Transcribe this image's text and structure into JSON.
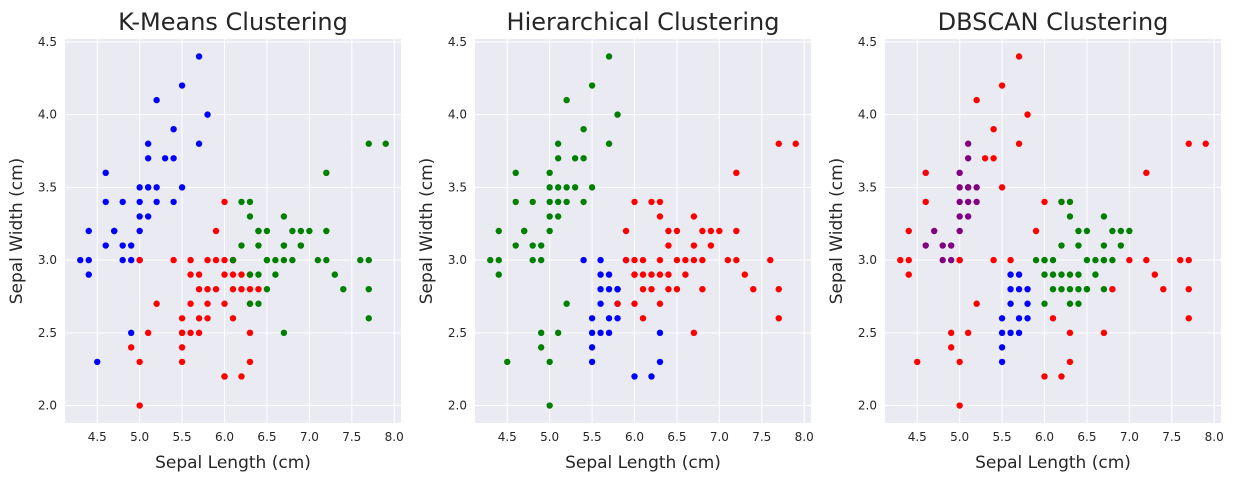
{
  "chart_data": [
    {
      "type": "scatter",
      "title": "K-Means Clustering",
      "xlabel": "Sepal Length (cm)",
      "ylabel": "Sepal Width (cm)",
      "xlim": [
        4.12,
        8.08
      ],
      "ylim": [
        1.88,
        4.52
      ],
      "xticks": [
        "4.5",
        "5.0",
        "5.5",
        "6.0",
        "6.5",
        "7.0",
        "7.5",
        "8.0"
      ],
      "yticks": [
        "2.0",
        "2.5",
        "3.0",
        "3.5",
        "4.0",
        "4.5"
      ],
      "grid": true,
      "series": [
        {
          "color": "#0000ff",
          "x": [
            4.3,
            4.4,
            4.4,
            4.4,
            4.5,
            4.6,
            4.6,
            4.6,
            4.7,
            4.7,
            4.8,
            4.8,
            4.8,
            4.9,
            4.9,
            5.0,
            5.0,
            5.0,
            5.0,
            5.0,
            5.1,
            5.1,
            5.1,
            5.1,
            5.1,
            5.2,
            5.2,
            5.2,
            5.3,
            5.4,
            5.4,
            5.4,
            5.5,
            5.5,
            5.7,
            5.7,
            5.8,
            4.9
          ],
          "y": [
            3.0,
            2.9,
            3.0,
            3.2,
            2.3,
            3.1,
            3.4,
            3.6,
            3.2,
            3.2,
            3.0,
            3.1,
            3.4,
            3.0,
            3.1,
            3.0,
            3.2,
            3.3,
            3.4,
            3.5,
            3.3,
            3.5,
            3.7,
            3.8,
            3.5,
            3.4,
            3.5,
            4.1,
            3.7,
            3.4,
            3.7,
            3.9,
            3.5,
            4.2,
            3.8,
            4.4,
            4.0,
            2.5
          ]
        },
        {
          "color": "#ff0000",
          "x": [
            4.9,
            5.0,
            5.0,
            5.1,
            5.2,
            5.4,
            5.5,
            5.5,
            5.5,
            5.5,
            5.6,
            5.6,
            5.6,
            5.7,
            5.7,
            5.7,
            5.8,
            5.8,
            5.8,
            5.9,
            5.9,
            6.0,
            6.0,
            6.0,
            6.0,
            6.1,
            6.1,
            6.1,
            6.2,
            6.2,
            6.3,
            6.3,
            6.3,
            6.4,
            5.6,
            5.7,
            6.1,
            6.2,
            6.3,
            5.9,
            6.0,
            6.1,
            5.8,
            6.3,
            5.5,
            6.0,
            5.0
          ],
          "y": [
            2.4,
            2.0,
            2.3,
            2.5,
            2.7,
            3.0,
            2.3,
            2.4,
            2.5,
            2.6,
            2.5,
            2.7,
            3.0,
            2.6,
            2.8,
            2.9,
            2.7,
            2.6,
            3.0,
            3.0,
            3.2,
            2.2,
            2.7,
            2.9,
            3.4,
            2.6,
            2.8,
            3.0,
            2.2,
            2.9,
            2.3,
            2.5,
            2.7,
            2.8,
            2.9,
            2.5,
            2.9,
            2.8,
            2.8,
            2.8,
            3.0,
            3.0,
            2.8,
            2.9,
            2.5,
            2.2,
            3.0
          ]
        },
        {
          "color": "#008000",
          "x": [
            6.2,
            6.3,
            6.3,
            6.4,
            6.4,
            6.4,
            6.5,
            6.5,
            6.6,
            6.7,
            6.7,
            6.8,
            6.9,
            6.9,
            7.0,
            7.1,
            7.2,
            7.2,
            7.3,
            7.4,
            7.6,
            7.7,
            7.7,
            7.7,
            7.9,
            6.3,
            6.4,
            6.7,
            6.5,
            6.7,
            6.8,
            6.2,
            6.4,
            6.7,
            6.9,
            7.2,
            6.6,
            6.3,
            6.1,
            6.5,
            7.7
          ],
          "y": [
            3.4,
            2.9,
            3.4,
            2.7,
            3.1,
            3.2,
            3.0,
            3.2,
            3.0,
            2.5,
            3.3,
            3.0,
            3.1,
            3.2,
            3.2,
            3.0,
            3.0,
            3.6,
            2.9,
            2.8,
            3.0,
            2.6,
            3.8,
            3.0,
            3.8,
            3.3,
            2.9,
            3.0,
            2.8,
            3.1,
            3.2,
            3.1,
            3.2,
            3.1,
            3.1,
            3.2,
            2.9,
            2.7,
            3.0,
            3.0,
            2.8
          ]
        }
      ]
    },
    {
      "type": "scatter",
      "title": "Hierarchical Clustering",
      "xlabel": "Sepal Length (cm)",
      "ylabel": "Sepal Width (cm)",
      "xlim": [
        4.12,
        8.08
      ],
      "ylim": [
        1.88,
        4.52
      ],
      "xticks": [
        "4.5",
        "5.0",
        "5.5",
        "6.0",
        "6.5",
        "7.0",
        "7.5",
        "8.0"
      ],
      "yticks": [
        "2.0",
        "2.5",
        "3.0",
        "3.5",
        "4.0",
        "4.5"
      ],
      "grid": true,
      "series": [
        {
          "color": "#008000",
          "x": [
            4.3,
            4.4,
            4.4,
            4.4,
            4.5,
            4.6,
            4.6,
            4.6,
            4.7,
            4.7,
            4.8,
            4.8,
            4.8,
            4.9,
            4.9,
            4.9,
            4.9,
            5.0,
            5.0,
            5.0,
            5.0,
            5.0,
            5.0,
            5.0,
            5.1,
            5.1,
            5.1,
            5.1,
            5.1,
            5.1,
            5.2,
            5.2,
            5.2,
            5.3,
            5.3,
            5.4,
            5.4,
            5.4,
            5.5,
            5.5,
            5.7,
            5.7,
            5.8,
            5.2
          ],
          "y": [
            3.0,
            2.9,
            3.0,
            3.2,
            2.3,
            3.1,
            3.4,
            3.6,
            3.2,
            3.2,
            3.0,
            3.1,
            3.4,
            2.4,
            2.5,
            3.0,
            3.1,
            2.0,
            2.3,
            3.2,
            3.3,
            3.4,
            3.5,
            3.6,
            2.5,
            3.3,
            3.5,
            3.7,
            3.8,
            3.4,
            3.4,
            3.5,
            4.1,
            3.7,
            3.5,
            3.4,
            3.7,
            3.9,
            3.5,
            4.2,
            3.8,
            4.4,
            4.0,
            2.7
          ]
        },
        {
          "color": "#0000ff",
          "x": [
            5.4,
            5.5,
            5.5,
            5.5,
            5.6,
            5.6,
            5.6,
            5.6,
            5.7,
            5.7,
            5.7,
            5.8,
            5.8,
            5.8,
            5.9,
            6.0,
            6.2,
            6.3,
            6.3,
            5.7,
            5.6,
            5.5,
            5.8
          ],
          "y": [
            3.0,
            2.3,
            2.4,
            2.6,
            2.5,
            2.7,
            2.8,
            3.0,
            2.6,
            2.8,
            2.9,
            2.6,
            2.7,
            2.8,
            3.0,
            2.2,
            2.2,
            2.3,
            2.5,
            2.5,
            2.9,
            2.5,
            2.8
          ]
        },
        {
          "color": "#ff0000",
          "x": [
            5.9,
            5.9,
            6.0,
            6.0,
            6.0,
            6.0,
            6.1,
            6.1,
            6.1,
            6.2,
            6.2,
            6.2,
            6.3,
            6.3,
            6.3,
            6.3,
            6.4,
            6.4,
            6.4,
            6.5,
            6.5,
            6.5,
            6.6,
            6.6,
            6.7,
            6.7,
            6.7,
            6.8,
            6.8,
            6.9,
            6.9,
            7.0,
            7.1,
            7.2,
            7.2,
            7.3,
            7.4,
            7.6,
            7.7,
            7.7,
            7.7,
            7.9,
            6.1,
            6.4,
            6.7,
            7.2,
            6.3,
            5.8,
            6.0,
            6.8
          ],
          "y": [
            3.0,
            3.2,
            2.7,
            2.9,
            3.0,
            3.4,
            2.8,
            2.9,
            3.0,
            2.9,
            3.4,
            2.8,
            2.7,
            2.9,
            3.3,
            3.4,
            2.8,
            2.9,
            3.1,
            2.8,
            3.0,
            3.2,
            2.9,
            3.0,
            2.5,
            3.0,
            3.3,
            2.8,
            3.2,
            3.1,
            3.2,
            3.2,
            3.0,
            3.0,
            3.6,
            2.9,
            2.8,
            3.0,
            2.6,
            2.8,
            3.8,
            3.8,
            2.6,
            3.2,
            3.1,
            3.2,
            3.0,
            2.7,
            2.9,
            3.0
          ]
        }
      ]
    },
    {
      "type": "scatter",
      "title": "DBSCAN Clustering",
      "xlabel": "Sepal Length (cm)",
      "ylabel": "Sepal Width (cm)",
      "xlim": [
        4.12,
        8.08
      ],
      "ylim": [
        1.88,
        4.52
      ],
      "xticks": [
        "4.5",
        "5.0",
        "5.5",
        "6.0",
        "6.5",
        "7.0",
        "7.5",
        "8.0"
      ],
      "yticks": [
        "2.0",
        "2.5",
        "3.0",
        "3.5",
        "4.0",
        "4.5"
      ],
      "grid": true,
      "series": [
        {
          "color": "#800080",
          "x": [
            4.6,
            4.7,
            4.8,
            4.8,
            4.9,
            4.9,
            5.0,
            5.0,
            5.0,
            5.0,
            5.0,
            5.1,
            5.1,
            5.1,
            5.1,
            5.1,
            5.2,
            5.2,
            5.0,
            5.1
          ],
          "y": [
            3.1,
            3.2,
            3.0,
            3.1,
            3.0,
            3.1,
            3.0,
            3.3,
            3.4,
            3.5,
            3.6,
            3.4,
            3.5,
            3.7,
            3.8,
            3.3,
            3.4,
            3.5,
            3.2,
            3.5
          ]
        },
        {
          "color": "#ff0000",
          "x": [
            4.3,
            4.4,
            4.4,
            4.5,
            4.6,
            4.6,
            4.9,
            4.9,
            5.0,
            5.0,
            5.1,
            5.2,
            5.2,
            5.3,
            5.4,
            5.4,
            5.4,
            5.5,
            5.5,
            5.6,
            5.7,
            5.7,
            5.8,
            5.9,
            6.0,
            6.0,
            6.1,
            6.2,
            6.2,
            6.3,
            6.3,
            6.7,
            6.8,
            7.0,
            7.2,
            7.2,
            7.3,
            7.4,
            7.6,
            7.7,
            7.7,
            7.7,
            7.7,
            7.9,
            4.4,
            5.0
          ],
          "y": [
            3.0,
            2.9,
            3.0,
            2.3,
            3.4,
            3.6,
            2.4,
            2.5,
            2.0,
            2.3,
            2.5,
            2.7,
            4.1,
            3.7,
            3.0,
            3.7,
            3.9,
            3.5,
            4.2,
            3.0,
            3.8,
            4.4,
            4.0,
            3.2,
            2.2,
            3.4,
            2.6,
            2.2,
            3.4,
            2.3,
            2.5,
            2.5,
            2.8,
            3.0,
            3.0,
            3.6,
            2.9,
            2.8,
            3.0,
            2.6,
            2.8,
            3.0,
            3.8,
            3.8,
            3.2,
            3.0
          ]
        },
        {
          "color": "#0000ff",
          "x": [
            5.5,
            5.5,
            5.5,
            5.6,
            5.6,
            5.6,
            5.7,
            5.7,
            5.7,
            5.8,
            5.8,
            5.8,
            5.5,
            5.6,
            5.7
          ],
          "y": [
            2.3,
            2.4,
            2.6,
            2.5,
            2.7,
            2.8,
            2.6,
            2.8,
            2.9,
            2.6,
            2.7,
            2.8,
            2.5,
            2.9,
            2.5
          ]
        },
        {
          "color": "#008000",
          "x": [
            5.9,
            6.0,
            6.0,
            6.0,
            6.1,
            6.1,
            6.1,
            6.2,
            6.2,
            6.2,
            6.3,
            6.3,
            6.3,
            6.3,
            6.4,
            6.4,
            6.4,
            6.4,
            6.5,
            6.5,
            6.5,
            6.6,
            6.6,
            6.7,
            6.7,
            6.7,
            6.8,
            6.8,
            6.9,
            6.9,
            6.0,
            6.3,
            6.4,
            6.7,
            7.0,
            6.7,
            6.5,
            6.2
          ],
          "y": [
            3.0,
            2.7,
            2.9,
            3.0,
            2.8,
            2.9,
            3.0,
            2.8,
            2.9,
            3.1,
            2.7,
            2.8,
            2.9,
            3.3,
            2.7,
            2.8,
            2.9,
            3.1,
            2.8,
            3.0,
            3.2,
            2.9,
            3.0,
            3.0,
            3.1,
            3.3,
            3.0,
            3.2,
            3.1,
            3.2,
            3.0,
            3.4,
            3.2,
            3.0,
            3.2,
            2.8,
            2.8,
            3.4
          ]
        }
      ]
    }
  ]
}
